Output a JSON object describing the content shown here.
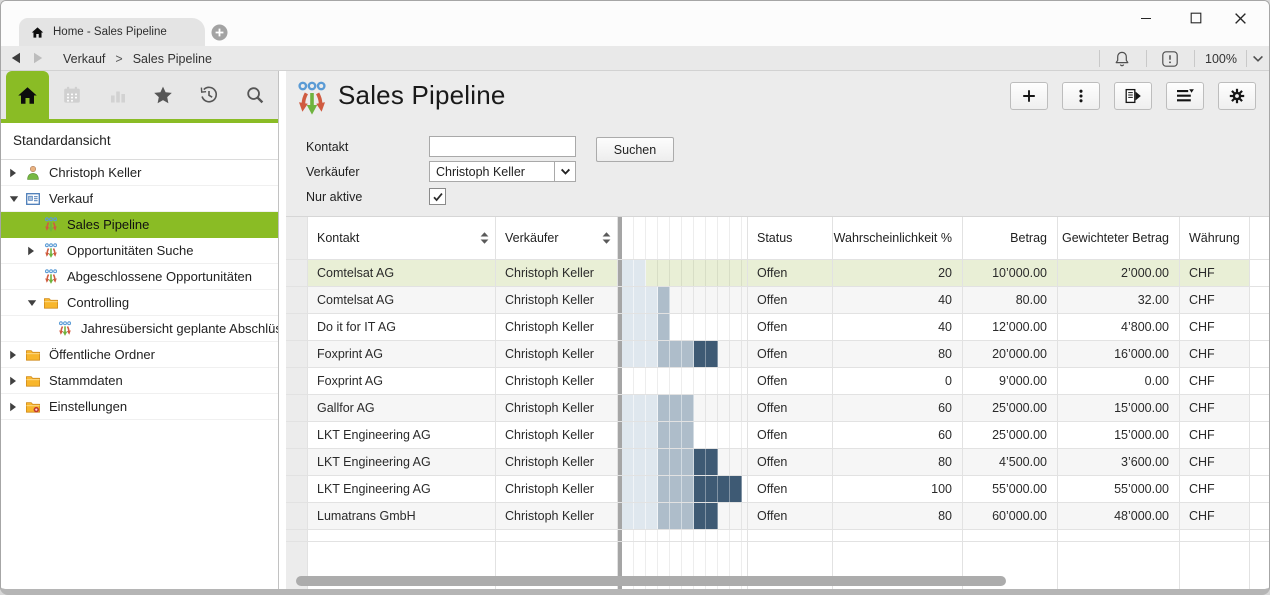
{
  "window": {
    "tab_title": "Home - Sales Pipeline",
    "zoom_level": "100%"
  },
  "breadcrumb": {
    "section": "Verkauf",
    "separator": ">",
    "page": "Sales Pipeline"
  },
  "sidebar": {
    "view_title": "Standardansicht",
    "tabs": [
      {
        "name": "home",
        "icon": "home",
        "active": true
      },
      {
        "name": "calendar",
        "icon": "calendar",
        "disabled": true
      },
      {
        "name": "charts",
        "icon": "barchart",
        "disabled": true
      },
      {
        "name": "favorites",
        "icon": "star"
      },
      {
        "name": "history",
        "icon": "history"
      },
      {
        "name": "search",
        "icon": "search"
      }
    ],
    "tree": [
      {
        "label": "Christoph Keller",
        "icon": "person",
        "level": 0,
        "expander": "collapsed"
      },
      {
        "label": "Verkauf",
        "icon": "card",
        "level": 0,
        "expander": "expanded"
      },
      {
        "label": "Sales Pipeline",
        "icon": "funnel",
        "level": 1,
        "expander": "none",
        "selected": true
      },
      {
        "label": "Opportunitäten Suche",
        "icon": "funnel",
        "level": 1,
        "expander": "collapsed"
      },
      {
        "label": "Abgeschlossene Opportunitäten",
        "icon": "funnel",
        "level": 1,
        "expander": "none"
      },
      {
        "label": "Controlling",
        "icon": "folder",
        "level": 1,
        "expander": "expanded"
      },
      {
        "label": "Jahresübersicht geplante Abschlüsse",
        "icon": "funnel",
        "level": 2,
        "expander": "none"
      },
      {
        "label": "Öffentliche Ordner",
        "icon": "folder",
        "level": 0,
        "expander": "collapsed"
      },
      {
        "label": "Stammdaten",
        "icon": "folder",
        "level": 0,
        "expander": "collapsed"
      },
      {
        "label": "Einstellungen",
        "icon": "folder-settings",
        "level": 0,
        "expander": "collapsed"
      }
    ]
  },
  "main": {
    "title": "Sales Pipeline",
    "toolbar": [
      {
        "name": "add",
        "icon": "plus"
      },
      {
        "name": "more-actions",
        "icon": "kebab"
      },
      {
        "name": "report",
        "icon": "doc-export"
      },
      {
        "name": "view-options",
        "icon": "list-caret"
      },
      {
        "name": "settings",
        "icon": "gear"
      }
    ],
    "filters": {
      "kontakt_label": "Kontakt",
      "kontakt_value": "",
      "verkaeufer_label": "Verkäufer",
      "verkaeufer_value": "Christoph Keller",
      "nur_aktive_label": "Nur aktive",
      "nur_aktive_checked": true,
      "search_button": "Suchen"
    },
    "table": {
      "columns": [
        {
          "label": "",
          "key": "handle"
        },
        {
          "label": "Kontakt",
          "key": "kontakt",
          "sortable": true
        },
        {
          "label": "Verkäufer",
          "key": "verkaeufer",
          "sortable": true
        },
        {
          "label": "",
          "key": "chart"
        },
        {
          "label": "Status",
          "key": "status"
        },
        {
          "label": "Wahrscheinlichkeit %",
          "key": "wahrscheinlichkeit",
          "align": "right"
        },
        {
          "label": "Betrag",
          "key": "betrag",
          "align": "right"
        },
        {
          "label": "Gewichteter Betrag",
          "key": "gewichteter_betrag",
          "align": "right"
        },
        {
          "label": "Währung",
          "key": "waehrung"
        }
      ],
      "rows": [
        {
          "kontakt": "Comtelsat AG",
          "verkaeufer": "Christoph Keller",
          "status": "Offen",
          "wahrscheinlichkeit": 20,
          "betrag": "10’000.00",
          "gewichteter_betrag": "2’000.00",
          "waehrung": "CHF",
          "selected": true
        },
        {
          "kontakt": "Comtelsat AG",
          "verkaeufer": "Christoph Keller",
          "status": "Offen",
          "wahrscheinlichkeit": 40,
          "betrag": "80.00",
          "gewichteter_betrag": "32.00",
          "waehrung": "CHF"
        },
        {
          "kontakt": "Do it for IT AG",
          "verkaeufer": "Christoph Keller",
          "status": "Offen",
          "wahrscheinlichkeit": 40,
          "betrag": "12’000.00",
          "gewichteter_betrag": "4’800.00",
          "waehrung": "CHF"
        },
        {
          "kontakt": "Foxprint AG",
          "verkaeufer": "Christoph Keller",
          "status": "Offen",
          "wahrscheinlichkeit": 80,
          "betrag": "20’000.00",
          "gewichteter_betrag": "16’000.00",
          "waehrung": "CHF"
        },
        {
          "kontakt": "Foxprint AG",
          "verkaeufer": "Christoph Keller",
          "status": "Offen",
          "wahrscheinlichkeit": 0,
          "betrag": "9’000.00",
          "gewichteter_betrag": "0.00",
          "waehrung": "CHF"
        },
        {
          "kontakt": "Gallfor AG",
          "verkaeufer": "Christoph Keller",
          "status": "Offen",
          "wahrscheinlichkeit": 60,
          "betrag": "25’000.00",
          "gewichteter_betrag": "15’000.00",
          "waehrung": "CHF"
        },
        {
          "kontakt": "LKT Engineering AG",
          "verkaeufer": "Christoph Keller",
          "status": "Offen",
          "wahrscheinlichkeit": 60,
          "betrag": "25’000.00",
          "gewichteter_betrag": "15’000.00",
          "waehrung": "CHF"
        },
        {
          "kontakt": "LKT Engineering AG",
          "verkaeufer": "Christoph Keller",
          "status": "Offen",
          "wahrscheinlichkeit": 80,
          "betrag": "4’500.00",
          "gewichteter_betrag": "3’600.00",
          "waehrung": "CHF"
        },
        {
          "kontakt": "LKT Engineering AG",
          "verkaeufer": "Christoph Keller",
          "status": "Offen",
          "wahrscheinlichkeit": 100,
          "betrag": "55’000.00",
          "gewichteter_betrag": "55’000.00",
          "waehrung": "CHF"
        },
        {
          "kontakt": "Lumatrans GmbH",
          "verkaeufer": "Christoph Keller",
          "status": "Offen",
          "wahrscheinlichkeit": 80,
          "betrag": "60’000.00",
          "gewichteter_betrag": "48’000.00",
          "waehrung": "CHF"
        }
      ]
    },
    "colors": {
      "accent_green": "#8abc25",
      "selected_row": "#e9efd6",
      "chart_low": "#dfe7ee",
      "chart_mid": "#aebdca",
      "chart_high": "#3e5a74"
    }
  }
}
